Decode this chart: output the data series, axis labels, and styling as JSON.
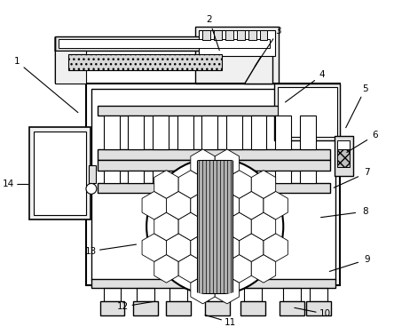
{
  "bg_color": "#ffffff",
  "lc": "#000000",
  "fc_light": "#f0f0f0",
  "fc_gray": "#e0e0e0",
  "fc_dark": "#cccccc",
  "fc_hatch": "#b8b8b8"
}
